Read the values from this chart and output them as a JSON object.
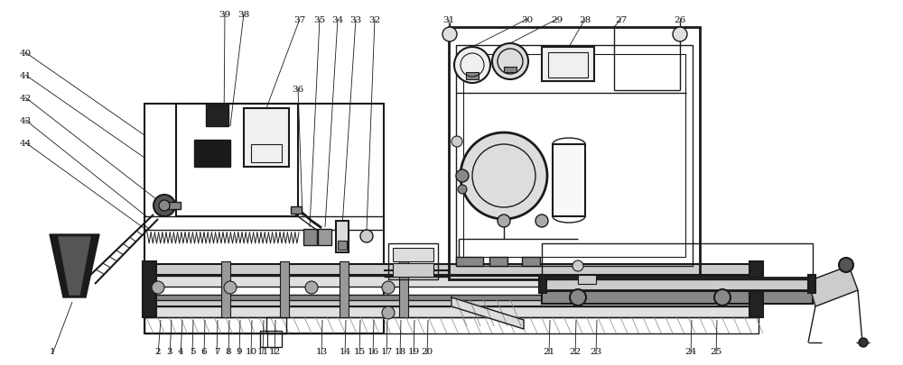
{
  "bg_color": "#ffffff",
  "line_color": "#1a1a1a",
  "label_color": "#111111",
  "gray_fill": "#cccccc",
  "dark_fill": "#333333",
  "light_fill": "#e8e8e8",
  "med_fill": "#aaaaaa"
}
